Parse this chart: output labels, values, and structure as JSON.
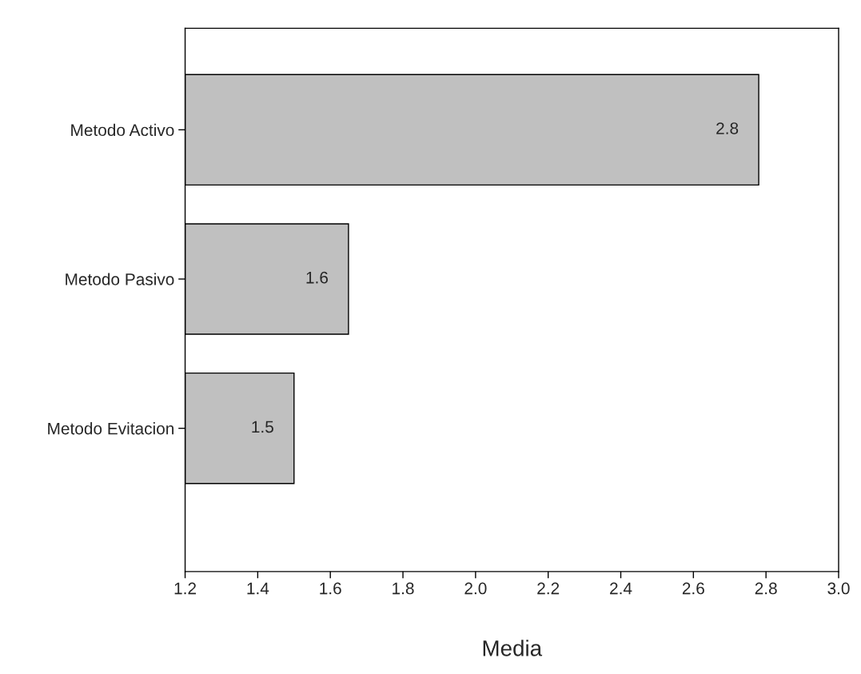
{
  "chart_data": {
    "type": "bar",
    "orientation": "horizontal",
    "xlabel": "Media",
    "categories": [
      "Metodo Activo",
      "Metodo Pasivo",
      "Metodo Evitacion"
    ],
    "values": [
      2.78,
      1.65,
      1.5
    ],
    "value_labels": [
      "2.8",
      "1.6",
      "1.5"
    ],
    "color": "#c0c0c0",
    "xlim": [
      1.2,
      3.0
    ],
    "xticks": [
      "1.2",
      "1.4",
      "1.6",
      "1.8",
      "2.0",
      "2.2",
      "2.4",
      "2.6",
      "2.8",
      "3.0"
    ],
    "grid": false,
    "legend": false
  }
}
